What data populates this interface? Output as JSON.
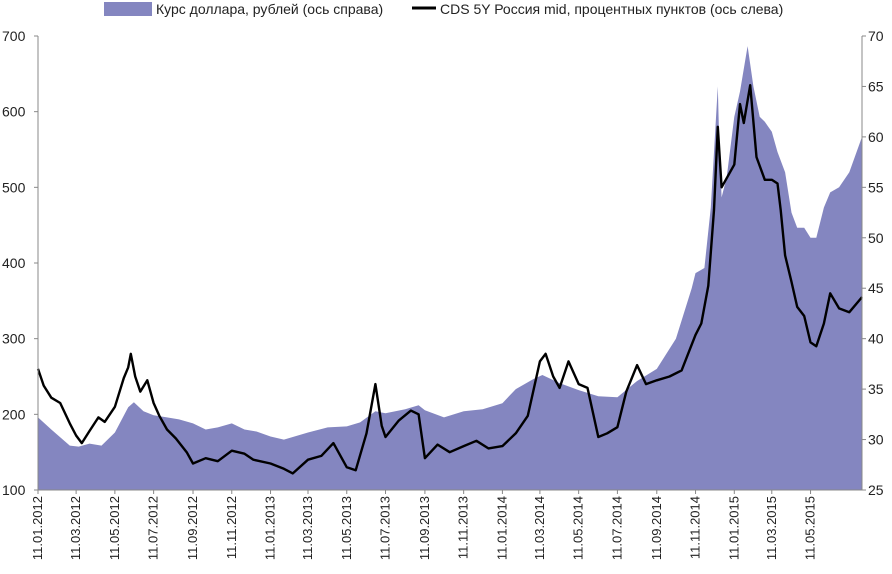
{
  "chart_data": {
    "type": "area+line",
    "title": "",
    "legend": {
      "placement": "top",
      "entries": [
        {
          "key": "usd",
          "label": "Курс доллара, рублей (ось справа)",
          "color": "#8486c0",
          "kind": "area"
        },
        {
          "key": "cds",
          "label": "CDS 5Y Россия mid, процентных пунктов (ось слева)",
          "color": "#000000",
          "kind": "line"
        }
      ]
    },
    "x_axis": {
      "start": "2012-01-11",
      "end": "2015-07-31",
      "tick_labels": [
        "11.01.2012",
        "11.03.2012",
        "11.05.2012",
        "11.07.2012",
        "11.09.2012",
        "11.11.2012",
        "11.01.2013",
        "11.03.2013",
        "11.05.2013",
        "11.07.2013",
        "11.09.2013",
        "11.11.2013",
        "11.01.2014",
        "11.03.2014",
        "11.05.2014",
        "11.07.2014",
        "11.09.2014",
        "11.11.2014",
        "11.01.2015",
        "11.03.2015",
        "11.05.2015"
      ]
    },
    "y_left": {
      "min": 100,
      "max": 700,
      "ticks": [
        100,
        200,
        300,
        400,
        500,
        600,
        700
      ],
      "series": "cds"
    },
    "y_right": {
      "min": 25,
      "max": 70,
      "ticks": [
        25,
        30,
        35,
        40,
        45,
        50,
        55,
        60,
        65,
        70
      ],
      "series": "usd"
    },
    "series": [
      {
        "key": "usd",
        "points": [
          [
            "2012-01-11",
            32.2
          ],
          [
            "2012-02-01",
            31.0
          ],
          [
            "2012-03-01",
            29.4
          ],
          [
            "2012-03-15",
            29.3
          ],
          [
            "2012-04-01",
            29.6
          ],
          [
            "2012-04-20",
            29.4
          ],
          [
            "2012-05-11",
            30.7
          ],
          [
            "2012-06-01",
            33.2
          ],
          [
            "2012-06-10",
            33.7
          ],
          [
            "2012-06-25",
            32.8
          ],
          [
            "2012-07-11",
            32.4
          ],
          [
            "2012-08-01",
            32.2
          ],
          [
            "2012-08-20",
            32.0
          ],
          [
            "2012-09-11",
            31.6
          ],
          [
            "2012-10-01",
            31.0
          ],
          [
            "2012-10-20",
            31.2
          ],
          [
            "2012-11-11",
            31.6
          ],
          [
            "2012-12-01",
            31.0
          ],
          [
            "2012-12-20",
            30.8
          ],
          [
            "2013-01-11",
            30.3
          ],
          [
            "2013-02-01",
            30.0
          ],
          [
            "2013-03-11",
            30.7
          ],
          [
            "2013-04-11",
            31.2
          ],
          [
            "2013-05-11",
            31.3
          ],
          [
            "2013-06-01",
            31.7
          ],
          [
            "2013-06-25",
            32.8
          ],
          [
            "2013-07-11",
            32.6
          ],
          [
            "2013-08-11",
            33.0
          ],
          [
            "2013-09-01",
            33.4
          ],
          [
            "2013-09-11",
            32.9
          ],
          [
            "2013-10-11",
            32.2
          ],
          [
            "2013-11-11",
            32.8
          ],
          [
            "2013-12-11",
            33.0
          ],
          [
            "2014-01-11",
            33.6
          ],
          [
            "2014-02-01",
            35.0
          ],
          [
            "2014-03-01",
            36.0
          ],
          [
            "2014-03-15",
            36.4
          ],
          [
            "2014-04-11",
            35.6
          ],
          [
            "2014-05-11",
            34.9
          ],
          [
            "2014-06-11",
            34.3
          ],
          [
            "2014-07-11",
            34.2
          ],
          [
            "2014-08-11",
            35.8
          ],
          [
            "2014-09-11",
            37.0
          ],
          [
            "2014-10-11",
            40.0
          ],
          [
            "2014-11-05",
            45.0
          ],
          [
            "2014-11-11",
            46.5
          ],
          [
            "2014-11-25",
            47.0
          ],
          [
            "2014-12-05",
            53.0
          ],
          [
            "2014-12-16",
            65.0
          ],
          [
            "2014-12-18",
            60.0
          ],
          [
            "2014-12-22",
            54.0
          ],
          [
            "2014-12-30",
            56.0
          ],
          [
            "2015-01-11",
            62.0
          ],
          [
            "2015-01-20",
            64.5
          ],
          [
            "2015-02-01",
            69.0
          ],
          [
            "2015-02-10",
            65.0
          ],
          [
            "2015-02-20",
            62.0
          ],
          [
            "2015-02-28",
            61.5
          ],
          [
            "2015-03-11",
            60.5
          ],
          [
            "2015-03-20",
            58.5
          ],
          [
            "2015-04-01",
            56.5
          ],
          [
            "2015-04-11",
            52.5
          ],
          [
            "2015-04-20",
            51.0
          ],
          [
            "2015-05-01",
            51.0
          ],
          [
            "2015-05-11",
            50.0
          ],
          [
            "2015-05-20",
            50.0
          ],
          [
            "2015-06-01",
            53.0
          ],
          [
            "2015-06-11",
            54.5
          ],
          [
            "2015-06-25",
            55.0
          ],
          [
            "2015-07-11",
            56.5
          ],
          [
            "2015-07-31",
            60.0
          ]
        ]
      },
      {
        "key": "cds",
        "points": [
          [
            "2012-01-11",
            260
          ],
          [
            "2012-01-20",
            238
          ],
          [
            "2012-02-01",
            222
          ],
          [
            "2012-02-15",
            215
          ],
          [
            "2012-03-01",
            188
          ],
          [
            "2012-03-11",
            172
          ],
          [
            "2012-03-20",
            162
          ],
          [
            "2012-04-01",
            178
          ],
          [
            "2012-04-15",
            196
          ],
          [
            "2012-04-25",
            190
          ],
          [
            "2012-05-11",
            210
          ],
          [
            "2012-05-25",
            248
          ],
          [
            "2012-06-01",
            262
          ],
          [
            "2012-06-05",
            280
          ],
          [
            "2012-06-12",
            250
          ],
          [
            "2012-06-20",
            230
          ],
          [
            "2012-07-01",
            245
          ],
          [
            "2012-07-11",
            215
          ],
          [
            "2012-07-20",
            198
          ],
          [
            "2012-08-01",
            180
          ],
          [
            "2012-08-15",
            168
          ],
          [
            "2012-09-01",
            150
          ],
          [
            "2012-09-11",
            135
          ],
          [
            "2012-10-01",
            142
          ],
          [
            "2012-10-20",
            138
          ],
          [
            "2012-11-11",
            152
          ],
          [
            "2012-12-01",
            148
          ],
          [
            "2012-12-15",
            140
          ],
          [
            "2013-01-11",
            135
          ],
          [
            "2013-02-01",
            128
          ],
          [
            "2013-02-15",
            122
          ],
          [
            "2013-03-11",
            140
          ],
          [
            "2013-04-01",
            145
          ],
          [
            "2013-04-20",
            162
          ],
          [
            "2013-05-11",
            130
          ],
          [
            "2013-05-25",
            126
          ],
          [
            "2013-06-11",
            175
          ],
          [
            "2013-06-25",
            240
          ],
          [
            "2013-07-05",
            185
          ],
          [
            "2013-07-11",
            170
          ],
          [
            "2013-08-01",
            192
          ],
          [
            "2013-08-20",
            205
          ],
          [
            "2013-09-01",
            200
          ],
          [
            "2013-09-11",
            142
          ],
          [
            "2013-10-01",
            160
          ],
          [
            "2013-10-20",
            150
          ],
          [
            "2013-11-11",
            158
          ],
          [
            "2013-12-01",
            165
          ],
          [
            "2013-12-20",
            155
          ],
          [
            "2014-01-11",
            158
          ],
          [
            "2014-02-01",
            175
          ],
          [
            "2014-02-20",
            198
          ],
          [
            "2014-03-11",
            270
          ],
          [
            "2014-03-20",
            280
          ],
          [
            "2014-04-01",
            250
          ],
          [
            "2014-04-11",
            235
          ],
          [
            "2014-04-25",
            270
          ],
          [
            "2014-05-11",
            240
          ],
          [
            "2014-05-25",
            235
          ],
          [
            "2014-06-11",
            170
          ],
          [
            "2014-06-25",
            175
          ],
          [
            "2014-07-11",
            183
          ],
          [
            "2014-07-25",
            230
          ],
          [
            "2014-08-11",
            265
          ],
          [
            "2014-08-25",
            240
          ],
          [
            "2014-09-11",
            245
          ],
          [
            "2014-10-01",
            250
          ],
          [
            "2014-10-20",
            258
          ],
          [
            "2014-11-11",
            305
          ],
          [
            "2014-11-20",
            320
          ],
          [
            "2014-12-01",
            370
          ],
          [
            "2014-12-10",
            470
          ],
          [
            "2014-12-16",
            580
          ],
          [
            "2014-12-22",
            500
          ],
          [
            "2015-01-11",
            530
          ],
          [
            "2015-01-20",
            610
          ],
          [
            "2015-01-26",
            585
          ],
          [
            "2015-02-05",
            635
          ],
          [
            "2015-02-15",
            540
          ],
          [
            "2015-02-28",
            510
          ],
          [
            "2015-03-11",
            510
          ],
          [
            "2015-03-20",
            505
          ],
          [
            "2015-03-25",
            470
          ],
          [
            "2015-04-01",
            410
          ],
          [
            "2015-04-11",
            375
          ],
          [
            "2015-04-20",
            342
          ],
          [
            "2015-05-01",
            330
          ],
          [
            "2015-05-11",
            295
          ],
          [
            "2015-05-20",
            290
          ],
          [
            "2015-06-01",
            320
          ],
          [
            "2015-06-11",
            360
          ],
          [
            "2015-06-25",
            340
          ],
          [
            "2015-07-11",
            335
          ],
          [
            "2015-07-31",
            355
          ]
        ]
      }
    ],
    "gridlines": false
  }
}
